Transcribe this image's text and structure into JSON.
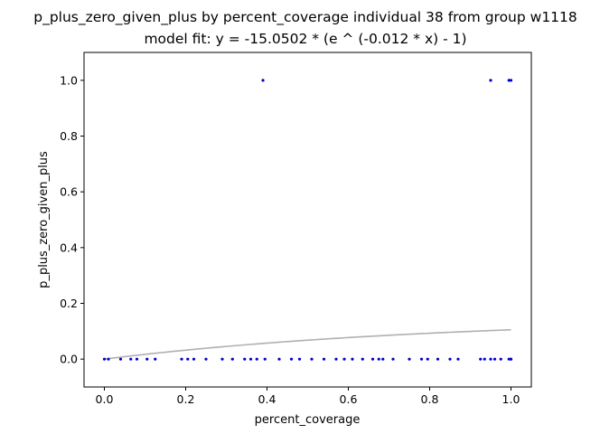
{
  "chart_data": {
    "type": "scatter",
    "title": "p_plus_zero_given_plus by percent_coverage individual 38 from group w1118",
    "subtitle": "model fit: y = -15.0502 * (e ^ (-0.012 * x) - 1)",
    "xlabel": "percent_coverage",
    "ylabel": "p_plus_zero_given_plus",
    "xlim": [
      -0.05,
      1.05
    ],
    "ylim": [
      -0.1,
      1.1
    ],
    "x_ticks": [
      "0.0",
      "0.2",
      "0.4",
      "0.6",
      "0.8",
      "1.0"
    ],
    "y_ticks": [
      "0.0",
      "0.2",
      "0.4",
      "0.6",
      "0.8",
      "1.0"
    ],
    "grid": false,
    "legend": "none",
    "colors": {
      "points": "#0000cc",
      "fit": "#b0b0b0"
    },
    "points": {
      "x": [
        0.0,
        0.01,
        0.04,
        0.065,
        0.08,
        0.105,
        0.125,
        0.19,
        0.205,
        0.22,
        0.25,
        0.29,
        0.315,
        0.345,
        0.36,
        0.375,
        0.395,
        0.43,
        0.46,
        0.48,
        0.51,
        0.54,
        0.57,
        0.59,
        0.61,
        0.635,
        0.66,
        0.675,
        0.685,
        0.71,
        0.75,
        0.78,
        0.795,
        0.82,
        0.85,
        0.87,
        0.925,
        0.935,
        0.95,
        0.96,
        0.975,
        0.995,
        1.0,
        1.0,
        0.39,
        0.95,
        0.995,
        1.0
      ],
      "y": [
        0,
        0,
        0,
        0,
        0,
        0,
        0,
        0,
        0,
        0,
        0,
        0,
        0,
        0,
        0,
        0,
        0,
        0,
        0,
        0,
        0,
        0,
        0,
        0,
        0,
        0,
        0,
        0,
        0,
        0,
        0,
        0,
        0,
        0,
        0,
        0,
        0,
        0,
        0,
        0,
        0,
        0,
        0,
        0,
        1,
        1,
        1,
        1
      ]
    },
    "fit": {
      "a": -15.0502,
      "b": -0.012,
      "x_range": [
        0.0,
        1.0
      ]
    }
  }
}
